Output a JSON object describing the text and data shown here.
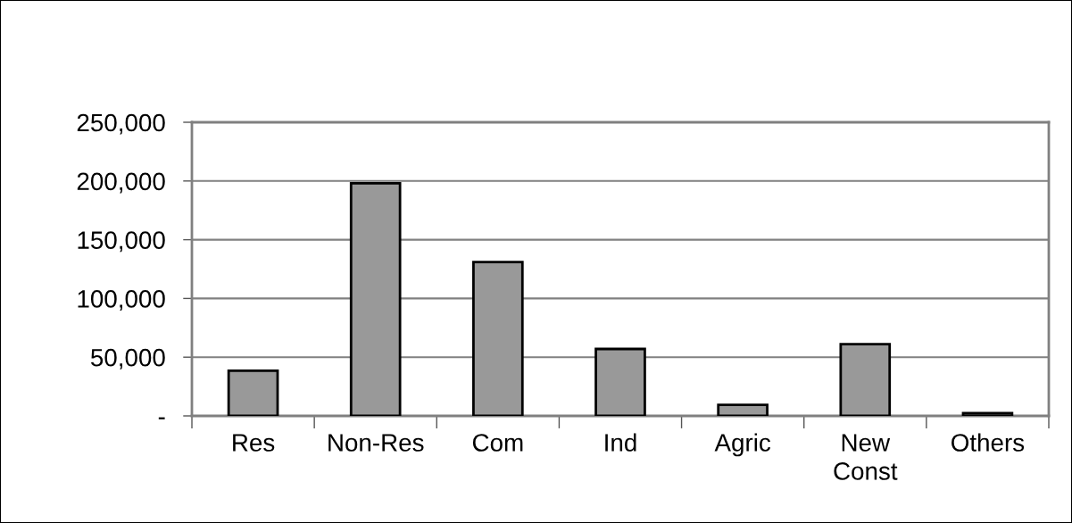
{
  "chart_data": {
    "type": "bar",
    "categories": [
      "Res",
      "Non-Res",
      "Com",
      "Ind",
      "Agric",
      "New\nConst",
      "Others"
    ],
    "values": [
      38500,
      198000,
      131000,
      57000,
      9400,
      61000,
      2300
    ],
    "color": "#999999",
    "ylim": [
      0,
      250000
    ],
    "yticks": [
      {
        "value": 0,
        "label": "-"
      },
      {
        "value": 50000,
        "label": "50,000"
      },
      {
        "value": 100000,
        "label": "100,000"
      },
      {
        "value": 150000,
        "label": "150,000"
      },
      {
        "value": 200000,
        "label": "200,000"
      },
      {
        "value": 250000,
        "label": "250,000"
      }
    ],
    "grid": "y",
    "legend": false
  }
}
